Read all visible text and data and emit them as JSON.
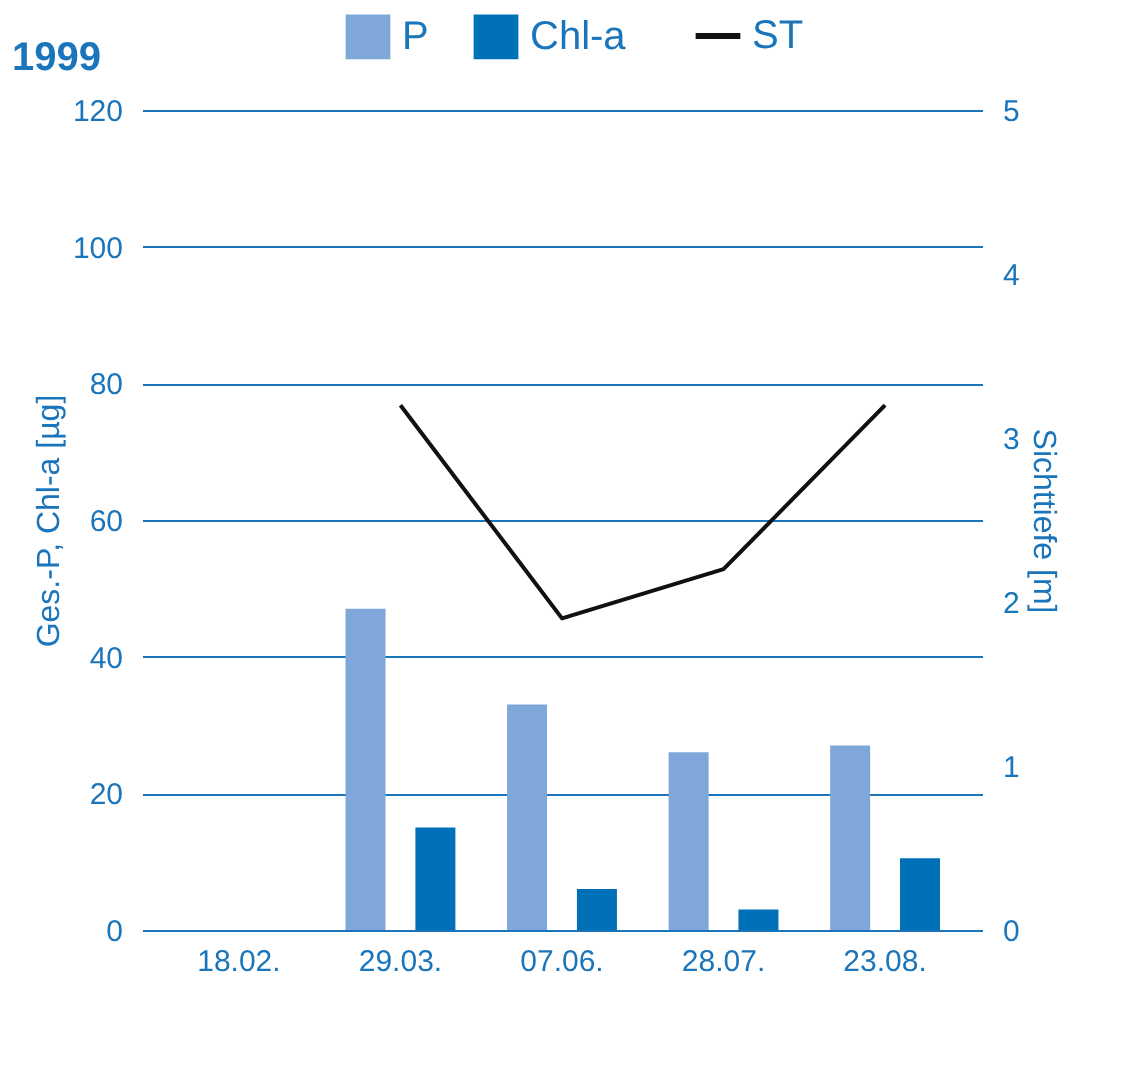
{
  "chart_data": {
    "type": "bar",
    "title": "1999",
    "categories": [
      "18.02.",
      "29.03.",
      "07.06.",
      "28.07.",
      "23.08."
    ],
    "series": [
      {
        "name": "P",
        "color": "#7fa7d9",
        "values": [
          null,
          47,
          33,
          26,
          27
        ]
      },
      {
        "name": "Chl-a",
        "color": "#0070b8",
        "values": [
          null,
          15,
          6,
          3,
          10.5
        ]
      },
      {
        "name": "ST",
        "color": "#111111",
        "type": "line",
        "axis": "y2",
        "values": [
          null,
          3.2,
          1.9,
          2.2,
          3.2
        ]
      }
    ],
    "ylabel": "Ges.-P, Chl-a [µg]",
    "y2label": "Sichttiefe [m]",
    "ylim": [
      0,
      120
    ],
    "yticks": [
      0,
      20,
      40,
      60,
      80,
      100,
      120
    ],
    "y2lim": [
      0,
      5
    ],
    "y2ticks": [
      0,
      1,
      2,
      3,
      4,
      5
    ],
    "grid": "y",
    "legend": "top",
    "marker": "none",
    "line_style": "solid"
  }
}
